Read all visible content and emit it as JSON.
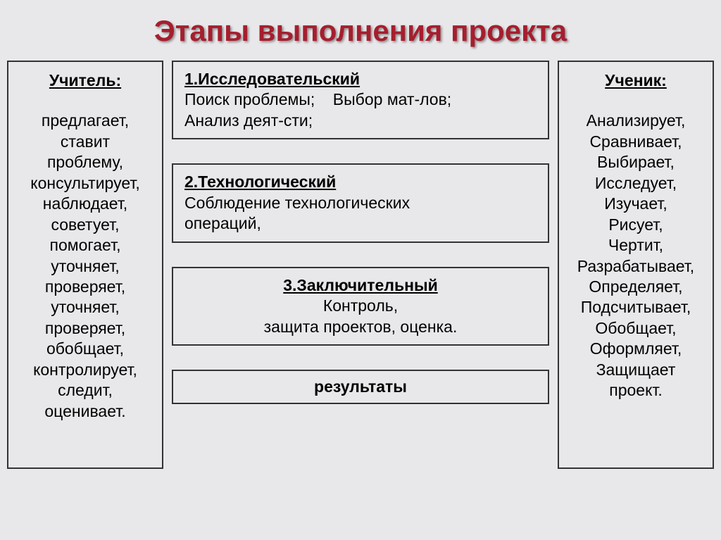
{
  "title": "Этапы выполнения проекта",
  "colors": {
    "title_color": "#a61e2e",
    "background": "#e8e8ea",
    "border": "#333333",
    "text": "#000000"
  },
  "typography": {
    "title_fontsize": 42,
    "body_fontsize": 23
  },
  "teacher": {
    "header": "Учитель:",
    "body": "предлагает,\nставит\nпроблему,\nконсультирует,\nнаблюдает,\nсоветует,\nпомогает,\nуточняет,\nпроверяет,\nуточняет,\nпроверяет,\nобобщает,\nконтролирует,\nследит,\nоценивает."
  },
  "student": {
    "header": "Ученик:",
    "body": "Анализирует,\nСравнивает,\nВыбирает,\nИсследует,\nИзучает,\nРисует,\nЧертит,\nРазрабатывает,\nОпределяет,\nПодсчитывает,\nОбобщает,\nОформляет,\nЗащищает\nпроект."
  },
  "stages": {
    "s1": {
      "header": "1.Исследовательский",
      "line1": "Поиск проблемы;    Выбор мат-лов;",
      "line2": "Анализ деят-сти;"
    },
    "s2": {
      "header": "2.Технологический",
      "body": "Соблюдение технологических\n операций,"
    },
    "s3": {
      "header": "3.Заключительный",
      "body": "Контроль,\nзащита проектов, оценка."
    },
    "results": "результаты"
  }
}
